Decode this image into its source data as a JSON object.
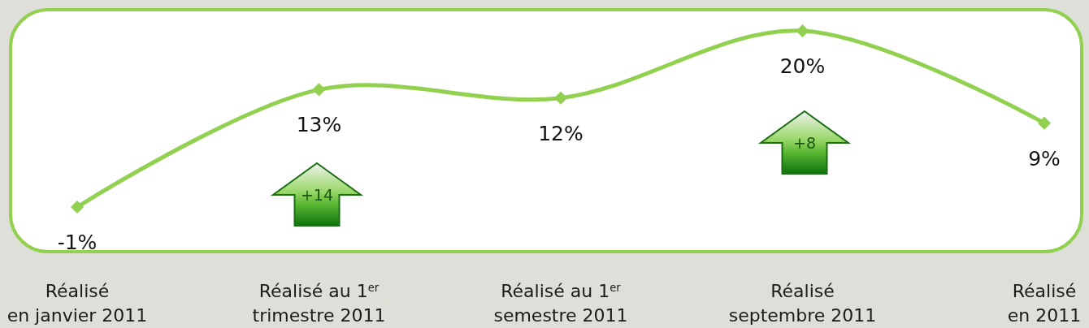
{
  "chart_data": {
    "type": "line",
    "categories": [
      "Réalisé\nen janvier 2011",
      "Réalisé au 1$^{er}$\ntrimestre 2011",
      "Réalisé au 1$^{er}$\nsemestre 2011",
      "Réalisé\nseptembre 2011",
      "Réalisé\nen 2011"
    ],
    "values": [
      -1,
      13,
      12,
      20,
      9
    ],
    "color": "#92d050",
    "value_labels": [
      "-1%",
      "13%",
      "12%",
      "20%",
      "9%"
    ],
    "marker": "diamond",
    "line_style": "solid",
    "annotations": [
      "+14",
      "+8"
    ]
  }
}
